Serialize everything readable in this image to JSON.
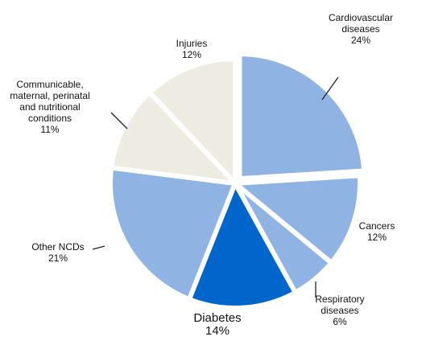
{
  "chart_data": {
    "type": "pie",
    "slices": [
      {
        "name": "Cardiovascular diseases",
        "label_lines": [
          "Cardiovascular",
          "diseases"
        ],
        "value": 24,
        "value_label": "24%",
        "color": "#8fb4e3",
        "exploded": true
      },
      {
        "name": "Cancers",
        "label_lines": [
          "Cancers"
        ],
        "value": 12,
        "value_label": "12%",
        "color": "#8fb4e3",
        "exploded": false
      },
      {
        "name": "Respiratory diseases",
        "label_lines": [
          "Respiratory",
          "diseases"
        ],
        "value": 6,
        "value_label": "6%",
        "color": "#8fb4e3",
        "exploded": false
      },
      {
        "name": "Diabetes",
        "label_lines": [
          "Diabetes"
        ],
        "value": 14,
        "value_label": "14%",
        "color": "#0066cc",
        "exploded": false
      },
      {
        "name": "Other NCDs",
        "label_lines": [
          "Other NCDs"
        ],
        "value": 21,
        "value_label": "21%",
        "color": "#8fb4e3",
        "exploded": false
      },
      {
        "name": "Communicable, maternal, perinatal and nutritional conditions",
        "label_lines": [
          "Communicable,",
          "maternal, perinatal",
          "and nutritional",
          "conditions"
        ],
        "value": 11,
        "value_label": "11%",
        "color": "#eeece2",
        "exploded": false
      },
      {
        "name": "Injuries",
        "label_lines": [
          "Injuries"
        ],
        "value": 12,
        "value_label": "12%",
        "color": "#eeece2",
        "exploded": false
      }
    ],
    "start_angle_deg": 0,
    "direction": "clockwise"
  }
}
